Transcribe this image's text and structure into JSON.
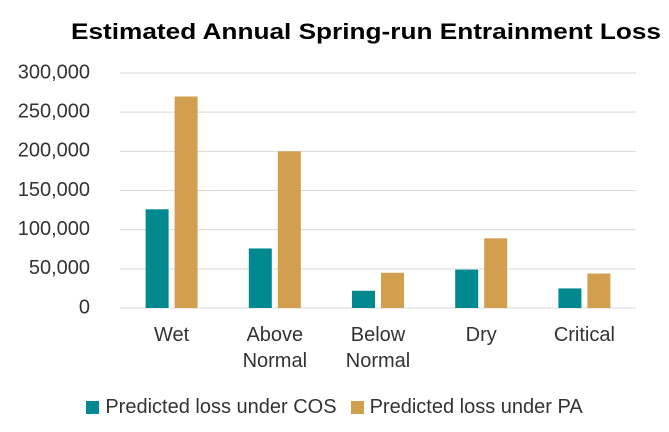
{
  "chart_data": {
    "type": "bar",
    "title": "Estimated Annual Spring-run Entrainment Loss",
    "categories": [
      "Wet",
      "Above Normal",
      "Below Normal",
      "Dry",
      "Critical"
    ],
    "series": [
      {
        "name": "Predicted loss under COS",
        "color": "#00898f",
        "values": [
          126000,
          76000,
          22000,
          49000,
          25000
        ]
      },
      {
        "name": "Predicted loss under PA",
        "color": "#d29f4e",
        "values": [
          270000,
          200000,
          45000,
          89000,
          44000
        ]
      }
    ],
    "ylim": [
      0,
      300000
    ],
    "yticks": [
      0,
      {
        "value": 50000,
        "label": "50,000"
      },
      {
        "value": 100000,
        "label": "100,000"
      },
      {
        "value": 150000,
        "label": "150,000"
      },
      {
        "value": 200000,
        "label": "200,000"
      },
      {
        "value": 250000,
        "label": "250,000"
      },
      {
        "value": 300000,
        "label": "300,000"
      }
    ],
    "grid": true,
    "legend": "bottom"
  }
}
